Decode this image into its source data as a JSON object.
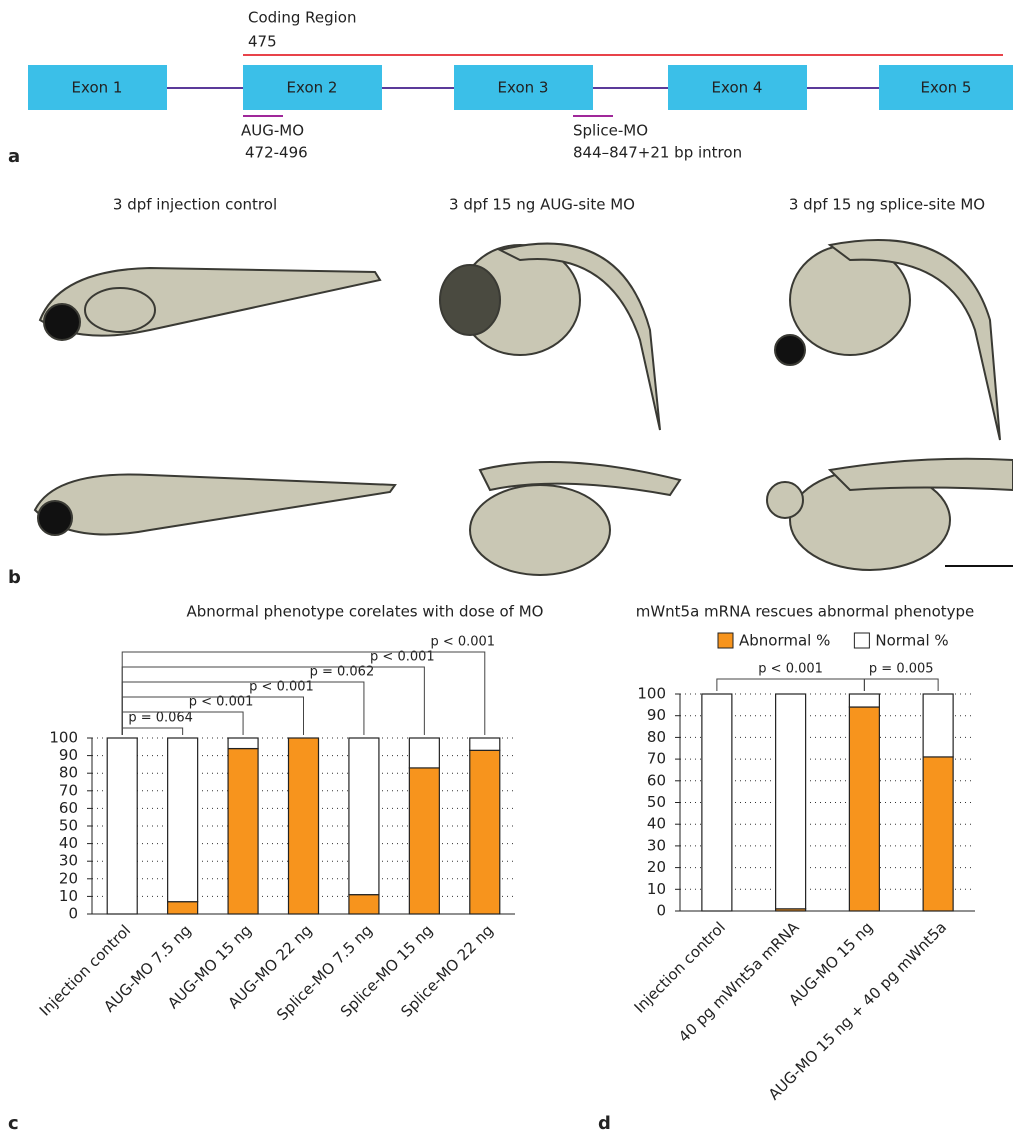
{
  "panel_a": {
    "letter": "a",
    "coding_region": "Coding Region",
    "coding_length": "475",
    "exons": [
      "Exon 1",
      "Exon 2",
      "Exon 3",
      "Exon 4",
      "Exon 5"
    ],
    "morpholinos": [
      {
        "name": "AUG-MO",
        "site": "472-496"
      },
      {
        "name": "Splice-MO",
        "site": "844–847+21 bp intron"
      }
    ]
  },
  "panel_b": {
    "letter": "b",
    "titles": [
      "3 dpf injection control",
      "3 dpf 15 ng AUG-site MO",
      "3 dpf 15 ng splice-site MO"
    ]
  },
  "chart_data": [
    {
      "type": "bar",
      "letter": "c",
      "title": "Abnormal phenotype corelates with dose of MO",
      "stacked": true,
      "categories": [
        "Injection control",
        "AUG-MO 7.5 ng",
        "AUG-MO 15 ng",
        "AUG-MO 22 ng",
        "Splice-MO 7.5 ng",
        "Splice-MO 15 ng",
        "Splice-MO 22 ng"
      ],
      "series": [
        {
          "color": "#f7941d",
          "values": [
            0,
            7,
            94,
            100,
            11,
            83,
            93
          ]
        },
        {
          "color": "#ffffff",
          "values": [
            100,
            93,
            6,
            0,
            89,
            17,
            7
          ]
        }
      ],
      "annotations": [
        "p = 0.064",
        "p < 0.001",
        "p < 0.001",
        "p = 0.062",
        "p < 0.001",
        "p < 0.001"
      ],
      "ylim": [
        0,
        100
      ],
      "yticks": [
        0,
        10,
        20,
        30,
        40,
        50,
        60,
        70,
        80,
        90,
        100
      ],
      "grid": true
    },
    {
      "type": "bar",
      "letter": "d",
      "title": "mWnt5a mRNA rescues abnormal phenotype",
      "stacked": true,
      "categories": [
        "Injection control",
        "40 pg mWnt5a mRNA",
        "AUG-MO 15 ng",
        "AUG-MO 15 ng + 40 pg mWnt5a"
      ],
      "series": [
        {
          "name": "Abnormal %",
          "color": "#f7941d",
          "values": [
            0,
            1,
            94,
            71
          ]
        },
        {
          "name": "Normal %",
          "color": "#ffffff",
          "values": [
            100,
            99,
            6,
            29
          ]
        }
      ],
      "annotations": [
        "p < 0.001",
        "p = 0.005"
      ],
      "ylim": [
        0,
        100
      ],
      "yticks": [
        0,
        10,
        20,
        30,
        40,
        50,
        60,
        70,
        80,
        90,
        100
      ],
      "grid": true
    }
  ]
}
